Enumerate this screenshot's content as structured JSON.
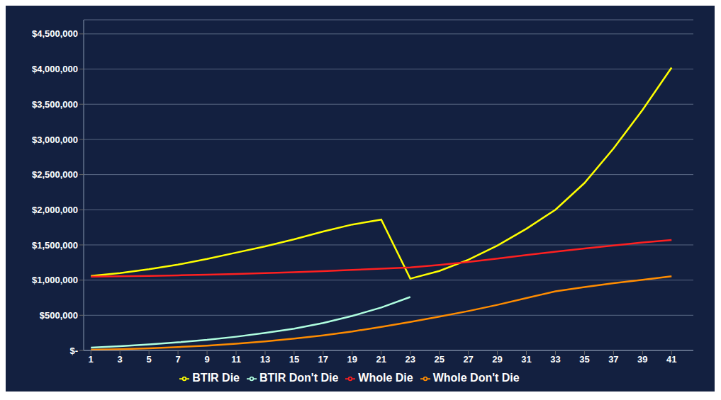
{
  "chart_data": {
    "type": "line",
    "x": [
      1,
      3,
      5,
      7,
      9,
      11,
      13,
      15,
      17,
      19,
      21,
      23,
      25,
      27,
      29,
      31,
      33,
      35,
      37,
      39,
      41
    ],
    "series": [
      {
        "name": "BTIR Don't Die",
        "color": "#b0ffe0",
        "values": [
          40000,
          60000,
          85000,
          115000,
          150000,
          195000,
          248000,
          310000,
          390000,
          490000,
          610000,
          760000,
          null,
          null,
          null,
          null,
          null,
          null,
          null,
          null,
          null
        ]
      },
      {
        "name": "BTIR Die",
        "color": "#ffff00",
        "values": [
          1060000,
          1100000,
          1155000,
          1220000,
          1300000,
          1390000,
          1480000,
          1580000,
          1690000,
          1790000,
          1860000,
          1020000,
          1130000,
          1290000,
          1490000,
          1730000,
          2000000,
          2380000,
          2870000,
          3420000,
          4020000
        ]
      },
      {
        "name": "Whole Don't Die",
        "color": "#ff8c00",
        "values": [
          10000,
          18000,
          30000,
          48000,
          68000,
          95000,
          128000,
          168000,
          215000,
          270000,
          335000,
          405000,
          480000,
          560000,
          648000,
          745000,
          840000,
          900000,
          955000,
          1005000,
          1055000
        ]
      },
      {
        "name": "Whole Die",
        "color": "#ff2020",
        "values": [
          1050000,
          1055000,
          1060000,
          1068000,
          1078000,
          1088000,
          1100000,
          1112000,
          1128000,
          1145000,
          1162000,
          1180000,
          1215000,
          1258000,
          1305000,
          1355000,
          1405000,
          1450000,
          1492000,
          1535000,
          1570000
        ]
      }
    ],
    "xlim": [
      0.5,
      42.5
    ],
    "xticks": [
      1,
      3,
      5,
      7,
      9,
      11,
      13,
      15,
      17,
      19,
      21,
      23,
      25,
      27,
      29,
      31,
      33,
      35,
      37,
      39,
      41
    ],
    "ylim": [
      0,
      4700000
    ],
    "yticks": [
      {
        "value": 0,
        "label": "$-"
      },
      {
        "value": 500000,
        "label": "$500,000"
      },
      {
        "value": 1000000,
        "label": "$1,000,000"
      },
      {
        "value": 1500000,
        "label": "$1,500,000"
      },
      {
        "value": 2000000,
        "label": "$2,000,000"
      },
      {
        "value": 2500000,
        "label": "$2,500,000"
      },
      {
        "value": 3000000,
        "label": "$3,000,000"
      },
      {
        "value": 3500000,
        "label": "$3,500,000"
      },
      {
        "value": 4000000,
        "label": "$4,000,000"
      },
      {
        "value": 4500000,
        "label": "$4,500,000"
      }
    ],
    "grid": true,
    "legend": "bottom"
  }
}
